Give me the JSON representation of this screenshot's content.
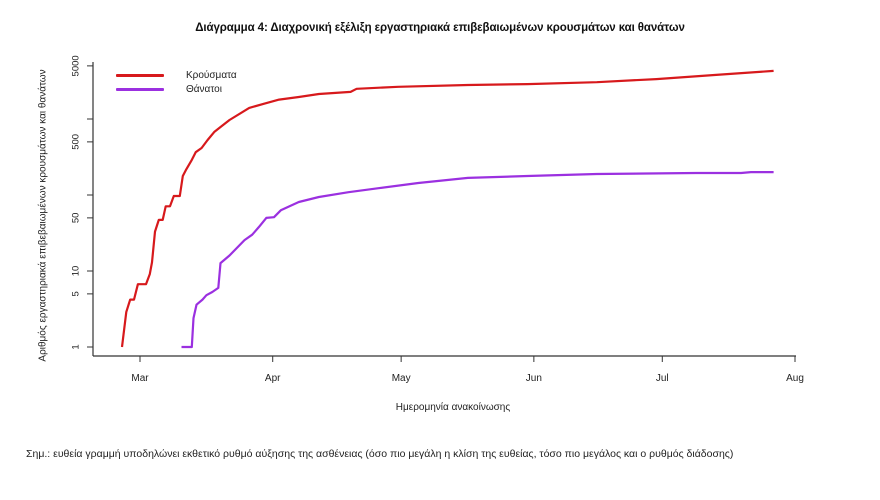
{
  "title": "Διάγραμμα 4: Διαχρονική εξέλιξη εργαστηριακά επιβεβαιωμένων κρουσμάτων και θανάτων",
  "note": "Σημ.: ευθεία γραμμή υποδηλώνει εκθετικό ρυθμό αύξησης της ασθένειας (όσο πιο μεγάλη η κλίση της ευθείας, τόσο πιο μεγάλος και ο ρυθμός διάδοσης)",
  "chart_data": {
    "type": "line",
    "title": "Διάγραμμα 4: Διαχρονική εξέλιξη εργαστηριακά επιβεβαιωμένων κρουσμάτων και θανάτων",
    "xlabel": "Ημερομηνία ανακοίνωσης",
    "ylabel": "Αριθμός εργαστηριακά επιβεβαιωμένων κρουσμάτων και θανάτων",
    "yscale": "log",
    "ylim": [
      1,
      5000
    ],
    "yticks": [
      1,
      5,
      10,
      50,
      100,
      500,
      1000,
      5000
    ],
    "ytick_labels": [
      "1",
      "5",
      "10",
      "50",
      "",
      "500",
      "",
      "5000"
    ],
    "x_unit": "days since 1 Mar",
    "xticks": [
      {
        "label": "Mar",
        "day": 0
      },
      {
        "label": "Apr",
        "day": 31
      },
      {
        "label": "May",
        "day": 61
      },
      {
        "label": "Jun",
        "day": 92
      },
      {
        "label": "Jul",
        "day": 122
      },
      {
        "label": "Aug",
        "day": 153
      }
    ],
    "grid": false,
    "legend_position": "top-left",
    "series": [
      {
        "name": "Κρούσματα",
        "color": "#d7191c",
        "points": [
          [
            -4.2,
            1
          ],
          [
            -3.2,
            2.9
          ],
          [
            -2.3,
            4.2
          ],
          [
            -1.4,
            4.2
          ],
          [
            -0.5,
            6.7
          ],
          [
            1.4,
            6.7
          ],
          [
            2.3,
            9.1
          ],
          [
            2.8,
            13
          ],
          [
            3.5,
            33
          ],
          [
            4.4,
            47
          ],
          [
            5.3,
            47
          ],
          [
            6.0,
            71
          ],
          [
            7.0,
            71
          ],
          [
            7.9,
            97
          ],
          [
            9.3,
            97
          ],
          [
            10.0,
            178
          ],
          [
            10.7,
            212
          ],
          [
            12.1,
            290
          ],
          [
            13.0,
            366
          ],
          [
            14.4,
            415
          ],
          [
            15.8,
            530
          ],
          [
            17.4,
            680
          ],
          [
            20.9,
            970
          ],
          [
            25.5,
            1400
          ],
          [
            29.0,
            1590
          ],
          [
            32.5,
            1800
          ],
          [
            37.1,
            1950
          ],
          [
            41.8,
            2130
          ],
          [
            49.2,
            2270
          ],
          [
            50.6,
            2500
          ],
          [
            60.3,
            2650
          ],
          [
            76.6,
            2800
          ],
          [
            90.5,
            2880
          ],
          [
            106.7,
            3050
          ],
          [
            120.6,
            3350
          ],
          [
            134.6,
            3800
          ],
          [
            148.0,
            4300
          ]
        ]
      },
      {
        "name": "Θάνατοι",
        "color": "#9b30e0",
        "points": [
          [
            9.7,
            1
          ],
          [
            12.1,
            1
          ],
          [
            12.5,
            2.4
          ],
          [
            13.2,
            3.6
          ],
          [
            14.6,
            4.2
          ],
          [
            15.5,
            4.8
          ],
          [
            16.9,
            5.3
          ],
          [
            18.3,
            6
          ],
          [
            18.8,
            12.7
          ],
          [
            20.9,
            16
          ],
          [
            24.4,
            25.5
          ],
          [
            26.2,
            30
          ],
          [
            27.8,
            38
          ],
          [
            29.5,
            50
          ],
          [
            31.3,
            51
          ],
          [
            32.9,
            63
          ],
          [
            37.1,
            81
          ],
          [
            41.8,
            94
          ],
          [
            48.7,
            109
          ],
          [
            55.7,
            123
          ],
          [
            65.0,
            144
          ],
          [
            76.6,
            168
          ],
          [
            90.5,
            178
          ],
          [
            106.7,
            189
          ],
          [
            129.9,
            195
          ],
          [
            140.4,
            195
          ],
          [
            142.7,
            200
          ],
          [
            148.0,
            200
          ]
        ]
      }
    ]
  }
}
